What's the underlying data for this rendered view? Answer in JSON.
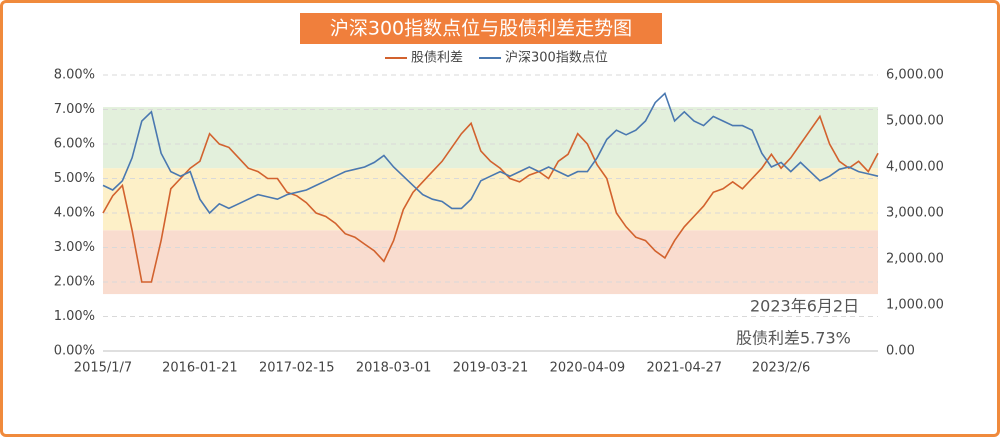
{
  "chart_data": {
    "type": "line",
    "title": "沪深300指数点位与股债利差走势图",
    "categories": [
      "2015/1/7",
      null,
      null,
      null,
      null,
      null,
      null,
      null,
      null,
      null,
      "2016-01-21",
      null,
      null,
      null,
      null,
      null,
      null,
      null,
      null,
      null,
      "2017-02-15",
      null,
      null,
      null,
      null,
      null,
      null,
      null,
      null,
      null,
      "2018-03-01",
      null,
      null,
      null,
      null,
      null,
      null,
      null,
      null,
      null,
      "2019-03-21",
      null,
      null,
      null,
      null,
      null,
      null,
      null,
      null,
      null,
      "2020-04-09",
      null,
      null,
      null,
      null,
      null,
      null,
      null,
      null,
      null,
      "2021-04-27",
      null,
      null,
      null,
      null,
      null,
      null,
      null,
      null,
      null,
      "2023/2/6",
      null,
      null,
      null,
      null,
      null,
      null,
      null,
      null,
      null,
      null
    ],
    "series": [
      {
        "name": "股债利差",
        "color": "#d2622e",
        "axis": "y",
        "values": [
          4.0,
          4.5,
          4.8,
          3.5,
          2.0,
          2.0,
          3.2,
          4.7,
          5.0,
          5.3,
          5.5,
          6.3,
          6.0,
          5.9,
          5.6,
          5.3,
          5.2,
          5.0,
          5.0,
          4.6,
          4.5,
          4.3,
          4.0,
          3.9,
          3.7,
          3.4,
          3.3,
          3.1,
          2.9,
          2.6,
          3.2,
          4.1,
          4.6,
          4.9,
          5.2,
          5.5,
          5.9,
          6.3,
          6.6,
          5.8,
          5.5,
          5.3,
          5.0,
          4.9,
          5.1,
          5.2,
          5.0,
          5.5,
          5.7,
          6.3,
          6.0,
          5.4,
          5.0,
          4.0,
          3.6,
          3.3,
          3.2,
          2.9,
          2.7,
          3.2,
          3.6,
          3.9,
          4.2,
          4.6,
          4.7,
          4.9,
          4.7,
          5.0,
          5.3,
          5.7,
          5.3,
          5.6,
          6.0,
          6.4,
          6.8,
          6.0,
          5.5,
          5.3,
          5.5,
          5.2,
          5.73
        ]
      },
      {
        "name": "沪深300指数点位",
        "color": "#4a78b0",
        "axis": "y2",
        "values": [
          3600,
          3500,
          3700,
          4200,
          5000,
          5200,
          4300,
          3900,
          3800,
          3900,
          3300,
          3000,
          3200,
          3100,
          3200,
          3300,
          3400,
          3350,
          3300,
          3400,
          3450,
          3500,
          3600,
          3700,
          3800,
          3900,
          3950,
          4000,
          4100,
          4250,
          4000,
          3800,
          3600,
          3400,
          3300,
          3250,
          3100,
          3100,
          3300,
          3700,
          3800,
          3900,
          3800,
          3900,
          4000,
          3900,
          4000,
          3900,
          3800,
          3900,
          3900,
          4200,
          4600,
          4800,
          4700,
          4800,
          5000,
          5400,
          5600,
          5000,
          5200,
          5000,
          4900,
          5100,
          5000,
          4900,
          4900,
          4800,
          4300,
          4000,
          4100,
          3900,
          4100,
          3900,
          3700,
          3800,
          3950,
          4000,
          3900,
          3850,
          3800
        ]
      }
    ],
    "ylim": [
      0,
      8
    ],
    "yticks": [
      {
        "value": 0,
        "label": "0.00%"
      },
      {
        "value": 1,
        "label": "1.00%"
      },
      {
        "value": 2,
        "label": "2.00%"
      },
      {
        "value": 3,
        "label": "3.00%"
      },
      {
        "value": 4,
        "label": "4.00%"
      },
      {
        "value": 5,
        "label": "5.00%"
      },
      {
        "value": 6,
        "label": "6.00%"
      },
      {
        "value": 7,
        "label": "7.00%"
      },
      {
        "value": 8,
        "label": "8.00%"
      }
    ],
    "y2lim": [
      0,
      6000
    ],
    "y2ticks": [
      {
        "value": 0,
        "label": "0.00"
      },
      {
        "value": 1000,
        "label": "1,000.00"
      },
      {
        "value": 2000,
        "label": "2,000.00"
      },
      {
        "value": 3000,
        "label": "3,000.00"
      },
      {
        "value": 4000,
        "label": "4,000.00"
      },
      {
        "value": 5000,
        "label": "5,000.00"
      },
      {
        "value": 6000,
        "label": "6,000.00"
      }
    ],
    "grid": true,
    "bands": [
      {
        "from": 1.65,
        "to": 3.5,
        "color": "#f9dccf"
      },
      {
        "from": 3.5,
        "to": 5.3,
        "color": "#fdf0c8"
      },
      {
        "from": 5.3,
        "to": 7.07,
        "color": "#e3f0dc"
      }
    ],
    "annotations": [
      "2023年6月2日",
      "股债利差5.73%"
    ]
  }
}
